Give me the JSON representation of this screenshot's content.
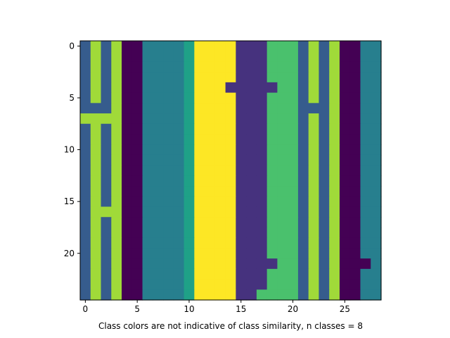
{
  "chart_data": {
    "type": "heatmap",
    "title": "",
    "xlabel": "Class colors are not indicative of class similarity, n classes = 8",
    "ylabel": "",
    "xlim": [
      -0.5,
      28.5
    ],
    "ylim": [
      24.5,
      -0.5
    ],
    "xticks": [
      0,
      5,
      10,
      15,
      20,
      25
    ],
    "yticks": [
      0,
      5,
      10,
      15,
      20
    ],
    "n_classes": 8,
    "palette": [
      "#440154",
      "#46327e",
      "#365c8d",
      "#277f8e",
      "#1fa187",
      "#4ac16d",
      "#a0da39",
      "#fde725"
    ],
    "grid": [
      [
        2,
        6,
        2,
        6,
        0,
        0,
        3,
        3,
        3,
        3,
        4,
        7,
        7,
        7,
        7,
        1,
        1,
        1,
        5,
        5,
        5,
        2,
        6,
        2,
        6,
        0,
        0,
        3,
        3
      ],
      [
        2,
        6,
        2,
        6,
        0,
        0,
        3,
        3,
        3,
        3,
        4,
        7,
        7,
        7,
        7,
        1,
        1,
        1,
        5,
        5,
        5,
        2,
        6,
        2,
        6,
        0,
        0,
        3,
        3
      ],
      [
        2,
        6,
        2,
        6,
        0,
        0,
        3,
        3,
        3,
        3,
        4,
        7,
        7,
        7,
        7,
        1,
        1,
        1,
        5,
        5,
        5,
        2,
        6,
        2,
        6,
        0,
        0,
        3,
        3
      ],
      [
        2,
        6,
        2,
        6,
        0,
        0,
        3,
        3,
        3,
        3,
        4,
        7,
        7,
        7,
        7,
        1,
        1,
        1,
        5,
        5,
        5,
        2,
        6,
        2,
        6,
        0,
        0,
        3,
        3
      ],
      [
        2,
        6,
        2,
        6,
        0,
        0,
        3,
        3,
        3,
        3,
        4,
        7,
        7,
        7,
        1,
        1,
        1,
        1,
        1,
        5,
        5,
        2,
        6,
        2,
        6,
        0,
        0,
        3,
        3
      ],
      [
        2,
        6,
        2,
        6,
        0,
        0,
        3,
        3,
        3,
        3,
        4,
        7,
        7,
        7,
        7,
        1,
        1,
        1,
        5,
        5,
        5,
        2,
        6,
        2,
        6,
        0,
        0,
        3,
        3
      ],
      [
        2,
        2,
        2,
        6,
        0,
        0,
        3,
        3,
        3,
        3,
        4,
        7,
        7,
        7,
        7,
        1,
        1,
        1,
        5,
        5,
        5,
        2,
        2,
        2,
        6,
        0,
        0,
        3,
        3
      ],
      [
        6,
        6,
        6,
        6,
        0,
        0,
        3,
        3,
        3,
        3,
        4,
        7,
        7,
        7,
        7,
        1,
        1,
        1,
        5,
        5,
        5,
        2,
        6,
        2,
        6,
        0,
        0,
        3,
        3
      ],
      [
        2,
        6,
        2,
        6,
        0,
        0,
        3,
        3,
        3,
        3,
        4,
        7,
        7,
        7,
        7,
        1,
        1,
        1,
        5,
        5,
        5,
        2,
        6,
        2,
        6,
        0,
        0,
        3,
        3
      ],
      [
        2,
        6,
        2,
        6,
        0,
        0,
        3,
        3,
        3,
        3,
        4,
        7,
        7,
        7,
        7,
        1,
        1,
        1,
        5,
        5,
        5,
        2,
        6,
        2,
        6,
        0,
        0,
        3,
        3
      ],
      [
        2,
        6,
        2,
        6,
        0,
        0,
        3,
        3,
        3,
        3,
        4,
        7,
        7,
        7,
        7,
        1,
        1,
        1,
        5,
        5,
        5,
        2,
        6,
        2,
        6,
        0,
        0,
        3,
        3
      ],
      [
        2,
        6,
        2,
        6,
        0,
        0,
        3,
        3,
        3,
        3,
        4,
        7,
        7,
        7,
        7,
        1,
        1,
        1,
        5,
        5,
        5,
        2,
        6,
        2,
        6,
        0,
        0,
        3,
        3
      ],
      [
        2,
        6,
        2,
        6,
        0,
        0,
        3,
        3,
        3,
        3,
        4,
        7,
        7,
        7,
        7,
        1,
        1,
        1,
        5,
        5,
        5,
        2,
        6,
        2,
        6,
        0,
        0,
        3,
        3
      ],
      [
        2,
        6,
        2,
        6,
        0,
        0,
        3,
        3,
        3,
        3,
        4,
        7,
        7,
        7,
        7,
        1,
        1,
        1,
        5,
        5,
        5,
        2,
        6,
        2,
        6,
        0,
        0,
        3,
        3
      ],
      [
        2,
        6,
        2,
        6,
        0,
        0,
        3,
        3,
        3,
        3,
        4,
        7,
        7,
        7,
        7,
        1,
        1,
        1,
        5,
        5,
        5,
        2,
        6,
        2,
        6,
        0,
        0,
        3,
        3
      ],
      [
        2,
        6,
        2,
        6,
        0,
        0,
        3,
        3,
        3,
        3,
        4,
        7,
        7,
        7,
        7,
        1,
        1,
        1,
        5,
        5,
        5,
        2,
        6,
        2,
        6,
        0,
        0,
        3,
        3
      ],
      [
        2,
        6,
        6,
        6,
        0,
        0,
        3,
        3,
        3,
        3,
        4,
        7,
        7,
        7,
        7,
        1,
        1,
        1,
        5,
        5,
        5,
        2,
        6,
        2,
        6,
        0,
        0,
        3,
        3
      ],
      [
        2,
        6,
        2,
        6,
        0,
        0,
        3,
        3,
        3,
        3,
        4,
        7,
        7,
        7,
        7,
        1,
        1,
        1,
        5,
        5,
        5,
        2,
        6,
        2,
        6,
        0,
        0,
        3,
        3
      ],
      [
        2,
        6,
        2,
        6,
        0,
        0,
        3,
        3,
        3,
        3,
        4,
        7,
        7,
        7,
        7,
        1,
        1,
        1,
        5,
        5,
        5,
        2,
        6,
        2,
        6,
        0,
        0,
        3,
        3
      ],
      [
        2,
        6,
        2,
        6,
        0,
        0,
        3,
        3,
        3,
        3,
        4,
        7,
        7,
        7,
        7,
        1,
        1,
        1,
        5,
        5,
        5,
        2,
        6,
        2,
        6,
        0,
        0,
        3,
        3
      ],
      [
        2,
        6,
        2,
        6,
        0,
        0,
        3,
        3,
        3,
        3,
        4,
        7,
        7,
        7,
        7,
        1,
        1,
        1,
        5,
        5,
        5,
        2,
        6,
        2,
        6,
        0,
        0,
        3,
        3
      ],
      [
        2,
        6,
        2,
        6,
        0,
        0,
        3,
        3,
        3,
        3,
        4,
        7,
        7,
        7,
        7,
        1,
        1,
        1,
        1,
        5,
        5,
        2,
        6,
        2,
        6,
        0,
        0,
        0,
        3
      ],
      [
        2,
        6,
        2,
        6,
        0,
        0,
        3,
        3,
        3,
        3,
        4,
        7,
        7,
        7,
        7,
        1,
        1,
        1,
        5,
        5,
        5,
        2,
        6,
        2,
        6,
        0,
        0,
        3,
        3
      ],
      [
        2,
        6,
        2,
        6,
        0,
        0,
        3,
        3,
        3,
        3,
        4,
        7,
        7,
        7,
        7,
        1,
        1,
        1,
        5,
        5,
        5,
        2,
        6,
        2,
        6,
        0,
        0,
        3,
        3
      ],
      [
        2,
        6,
        2,
        6,
        0,
        0,
        3,
        3,
        3,
        3,
        4,
        7,
        7,
        7,
        7,
        1,
        1,
        5,
        5,
        5,
        5,
        2,
        6,
        2,
        6,
        0,
        0,
        3,
        3
      ]
    ]
  }
}
